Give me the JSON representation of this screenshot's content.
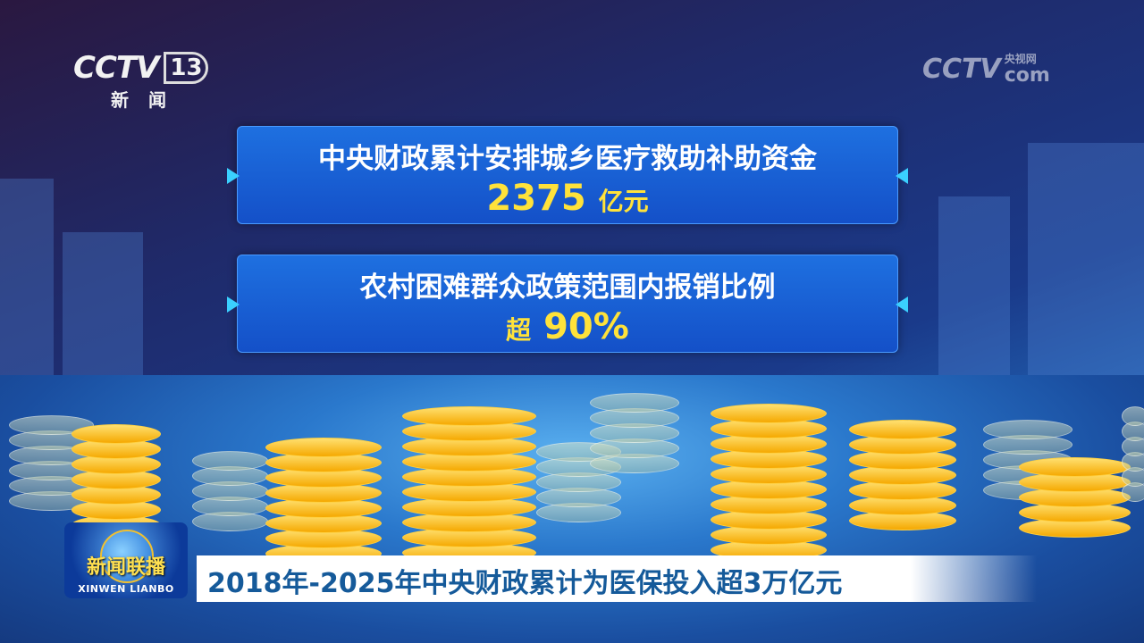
{
  "channel_logo": {
    "brand": "CCTV",
    "number": "13",
    "name": "新闻"
  },
  "watermark": {
    "brand": "CCTV",
    "domain": "com",
    "name": "央视网"
  },
  "panels": [
    {
      "title": "中央财政累计安排城乡医疗救助补助资金",
      "value": "2375",
      "unit": "亿元"
    },
    {
      "title": "农村困难群众政策范围内报销比例",
      "prefix": "超",
      "value": "90%"
    }
  ],
  "program_badge": {
    "name_cn": "新闻联播",
    "name_en": "XINWEN  LIANBO"
  },
  "caption": "2018年-2025年中央财政累计为医保投入超3万亿元",
  "colors": {
    "panel": "#1a60d8",
    "highlight": "#ffe23a",
    "caption_text": "#155a9a"
  }
}
